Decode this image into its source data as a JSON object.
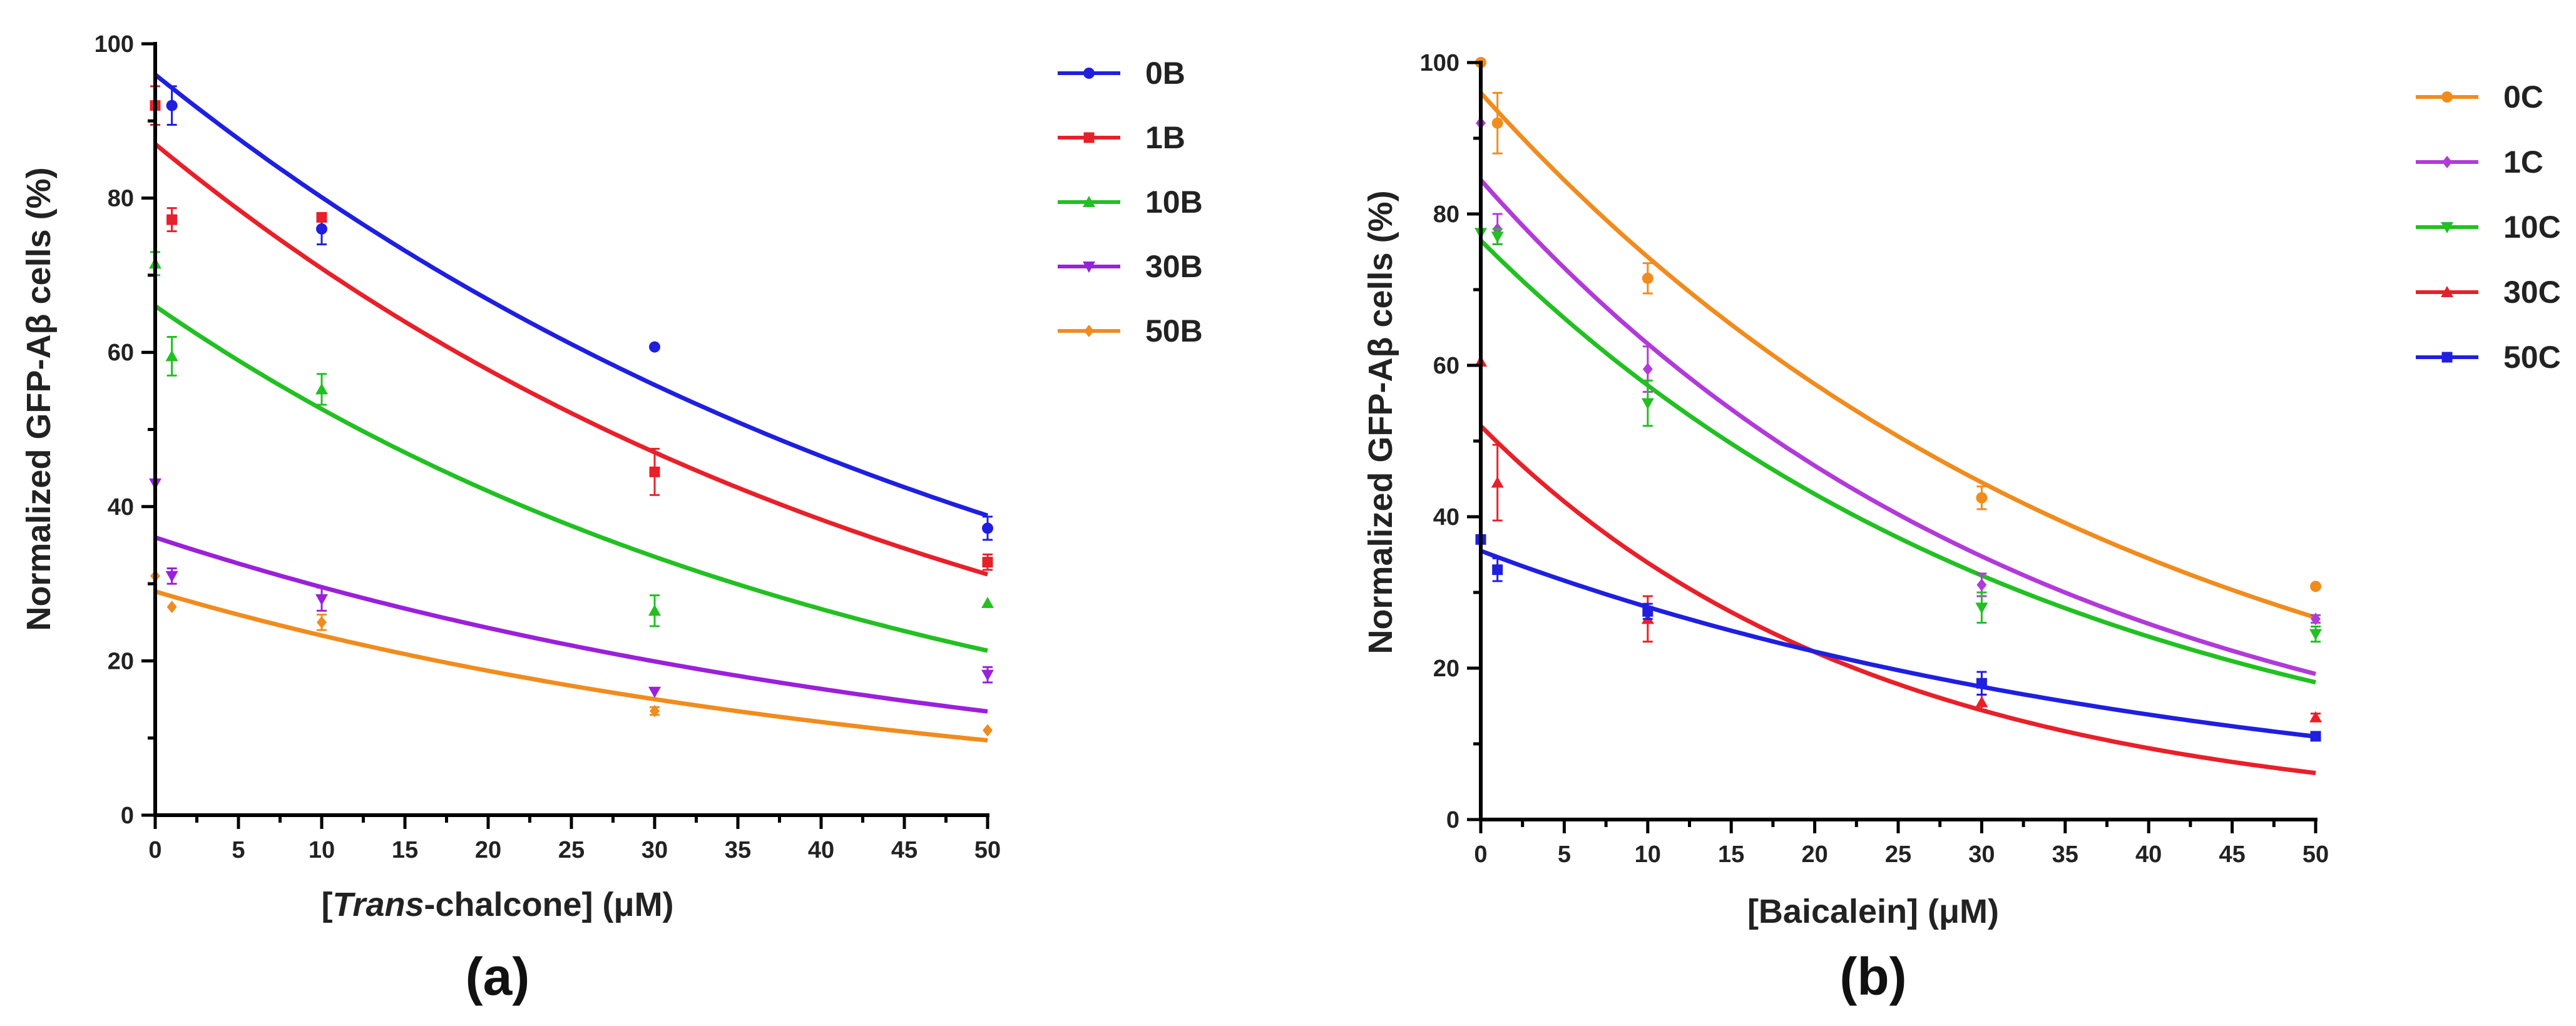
{
  "chart_data": [
    {
      "panel": "(a)",
      "type": "scatter",
      "xlabel_prefix": "[",
      "xlabel_italic": "Trans",
      "xlabel_suffix": "-chalcone] (μM)",
      "ylabel": "Normalized GFP-Aβ cells (%)",
      "xlim": [
        0,
        50
      ],
      "ylim": [
        0,
        100
      ],
      "xticks": [
        0,
        5,
        10,
        15,
        20,
        25,
        30,
        35,
        40,
        45,
        50
      ],
      "yticks": [
        0,
        20,
        40,
        60,
        80,
        100
      ],
      "legend_position": "right",
      "series": [
        {
          "name": "0B",
          "color": "#1f1fe0",
          "marker": "circle",
          "x": [
            1,
            10,
            30,
            50
          ],
          "y": [
            92,
            76,
            60.7,
            37.2
          ],
          "err": [
            2.5,
            2,
            0,
            1.5
          ],
          "fit": {
            "a": 96,
            "k": 0.0181
          }
        },
        {
          "name": "1B",
          "color": "#e8202a",
          "marker": "square",
          "x": [
            0,
            1,
            10,
            30,
            50
          ],
          "y": [
            92,
            77.2,
            77.5,
            44.5,
            32.8
          ],
          "err": [
            2.5,
            1.5,
            0,
            3,
            1
          ],
          "fit": {
            "a": 87,
            "k": 0.0205
          }
        },
        {
          "name": "10B",
          "color": "#22c022",
          "marker": "triangle",
          "x": [
            0,
            1,
            10,
            30,
            50
          ],
          "y": [
            71.5,
            59.5,
            55.2,
            26.5,
            27.5
          ],
          "err": [
            1.5,
            2.5,
            2,
            2,
            0
          ],
          "fit": {
            "a": 66,
            "k": 0.0226
          }
        },
        {
          "name": "30B",
          "color": "#9b20d9",
          "marker": "triangle-down",
          "x": [
            0,
            1,
            10,
            30,
            50
          ],
          "y": [
            43,
            31,
            28,
            16,
            18.2
          ],
          "err": [
            0,
            1,
            1.5,
            0,
            1
          ],
          "fit": {
            "a": 36,
            "k": 0.0197
          }
        },
        {
          "name": "50B",
          "color": "#f08c1e",
          "marker": "diamond",
          "x": [
            0,
            1,
            10,
            30,
            50
          ],
          "y": [
            31,
            27,
            25,
            13.5,
            11
          ],
          "err": [
            0,
            0,
            1,
            0.5,
            0
          ],
          "fit": {
            "a": 29,
            "k": 0.0219
          }
        }
      ]
    },
    {
      "panel": "(b)",
      "type": "scatter",
      "xlabel": "[Baicalein] (μM)",
      "ylabel": "Normalized GFP-Aβ cells (%)",
      "xlim": [
        0,
        50
      ],
      "ylim": [
        0,
        100
      ],
      "xticks": [
        0,
        5,
        10,
        15,
        20,
        25,
        30,
        35,
        40,
        45,
        50
      ],
      "yticks": [
        0,
        20,
        40,
        60,
        80,
        100
      ],
      "legend_position": "right",
      "series": [
        {
          "name": "0C",
          "color": "#f08c1e",
          "marker": "circle",
          "x": [
            0,
            1,
            10,
            30,
            50
          ],
          "y": [
            100,
            92,
            71.5,
            42.5,
            30.8
          ],
          "err": [
            0,
            4,
            2,
            1.5,
            0
          ],
          "fit": {
            "a": 96,
            "k": 0.0256
          }
        },
        {
          "name": "1C",
          "color": "#b13ad9",
          "marker": "diamond",
          "x": [
            0,
            1,
            10,
            30,
            50
          ],
          "y": [
            92,
            78,
            59.5,
            31,
            26.5
          ],
          "err": [
            0,
            2,
            3,
            1.5,
            0.5
          ],
          "fit": {
            "a": 84.5,
            "k": 0.0296
          }
        },
        {
          "name": "10C",
          "color": "#22c022",
          "marker": "triangle-down",
          "x": [
            0,
            1,
            10,
            30,
            50
          ],
          "y": [
            77.5,
            77,
            55,
            28,
            24.5
          ],
          "err": [
            0,
            1,
            3,
            2,
            1
          ],
          "fit": {
            "a": 76.5,
            "k": 0.0288
          }
        },
        {
          "name": "30C",
          "color": "#e8202a",
          "marker": "triangle",
          "x": [
            0,
            1,
            10,
            30,
            50
          ],
          "y": [
            60.5,
            44.5,
            26.5,
            15.5,
            13.5
          ],
          "err": [
            0,
            5,
            3,
            1,
            0.5
          ],
          "fit": {
            "a": 52,
            "k": 0.0427
          }
        },
        {
          "name": "50C",
          "color": "#1f1fe0",
          "marker": "square",
          "x": [
            0,
            1,
            10,
            30,
            50
          ],
          "y": [
            37,
            33,
            27.5,
            18,
            11
          ],
          "err": [
            0,
            1.5,
            1,
            1.5,
            0
          ],
          "fit": {
            "a": 35.5,
            "k": 0.0235
          }
        }
      ]
    }
  ]
}
